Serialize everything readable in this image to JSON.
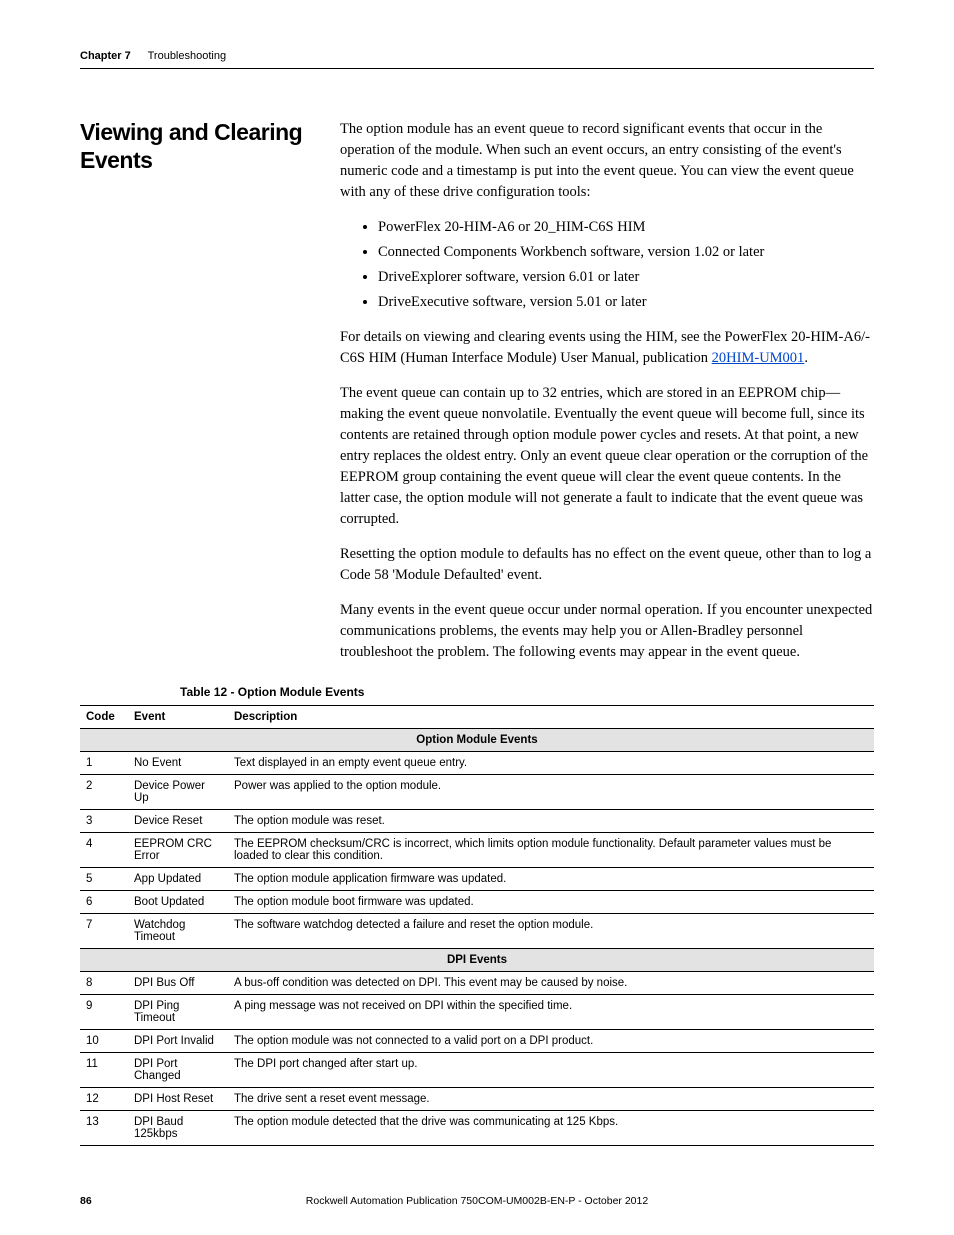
{
  "header": {
    "chapter_label": "Chapter 7",
    "chapter_title": "Troubleshooting"
  },
  "section": {
    "heading": "Viewing and Clearing Events",
    "intro": "The option module has an event queue to record significant events that occur in the operation of the module. When such an event occurs, an entry consisting of the event's numeric code and a timestamp is put into the event queue. You can view the event queue with any of these drive configuration tools:",
    "tools": [
      "PowerFlex 20-HIM-A6 or 20_HIM-C6S HIM",
      "Connected Components Workbench software, version 1.02 or later",
      "DriveExplorer software, version 6.01 or later",
      "DriveExecutive software, version 5.01 or later"
    ],
    "p_details_pre": "For details on viewing and clearing events using the HIM, see the PowerFlex 20-HIM-A6/-C6S HIM (Human Interface Module) User Manual, publication ",
    "link_text": "20HIM-UM001",
    "p_details_post": ".",
    "p_eeprom": "The event queue can contain up to 32 entries, which are stored in an EEPROM chip—making the event queue nonvolatile. Eventually the event queue will become full, since its contents are retained through option module power cycles and resets. At that point, a new entry replaces the oldest entry. Only an event queue clear operation or the corruption of the EEPROM group containing the event queue will clear the event queue contents. In the latter case, the option module will not generate a fault to indicate that the event queue was corrupted.",
    "p_reset": "Resetting the option module to defaults has no effect on the event queue, other than to log a Code 58 'Module Defaulted' event.",
    "p_many": "Many events in the event queue occur under normal operation. If you encounter unexpected communications problems, the events may help you or Allen-Bradley personnel troubleshoot the problem. The following events may appear in the event queue."
  },
  "table": {
    "title": "Table 12 - Option Module Events",
    "headers": {
      "code": "Code",
      "event": "Event",
      "desc": "Description"
    },
    "section1_label": "Option Module Events",
    "section2_label": "DPI Events",
    "rows1": [
      {
        "code": "1",
        "event": "No Event",
        "desc": "Text displayed in an empty event queue entry."
      },
      {
        "code": "2",
        "event": "Device Power Up",
        "desc": "Power was applied to the option module."
      },
      {
        "code": "3",
        "event": "Device Reset",
        "desc": "The option module was reset."
      },
      {
        "code": "4",
        "event": "EEPROM CRC Error",
        "desc": "The EEPROM checksum/CRC is incorrect, which limits option module functionality. Default parameter values must be loaded to clear this condition."
      },
      {
        "code": "5",
        "event": "App Updated",
        "desc": "The option module application firmware was updated."
      },
      {
        "code": "6",
        "event": "Boot Updated",
        "desc": "The option module boot firmware was updated."
      },
      {
        "code": "7",
        "event": "Watchdog Timeout",
        "desc": "The software watchdog detected a failure and reset the option module."
      }
    ],
    "rows2": [
      {
        "code": "8",
        "event": "DPI Bus Off",
        "desc": "A bus-off condition was detected on DPI. This event may be caused by noise."
      },
      {
        "code": "9",
        "event": "DPI Ping Timeout",
        "desc": "A ping message was not received on DPI within the specified time."
      },
      {
        "code": "10",
        "event": "DPI Port Invalid",
        "desc": "The option module was not connected to a valid port on a DPI product."
      },
      {
        "code": "11",
        "event": "DPI Port Changed",
        "desc": "The DPI port changed after start up."
      },
      {
        "code": "12",
        "event": "DPI Host Reset",
        "desc": "The drive sent a reset event message."
      },
      {
        "code": "13",
        "event": "DPI Baud 125kbps",
        "desc": "The option module detected that the drive was communicating at 125 Kbps."
      }
    ]
  },
  "footer": {
    "page": "86",
    "text": "Rockwell Automation Publication 750COM-UM002B-EN-P - October 2012"
  }
}
